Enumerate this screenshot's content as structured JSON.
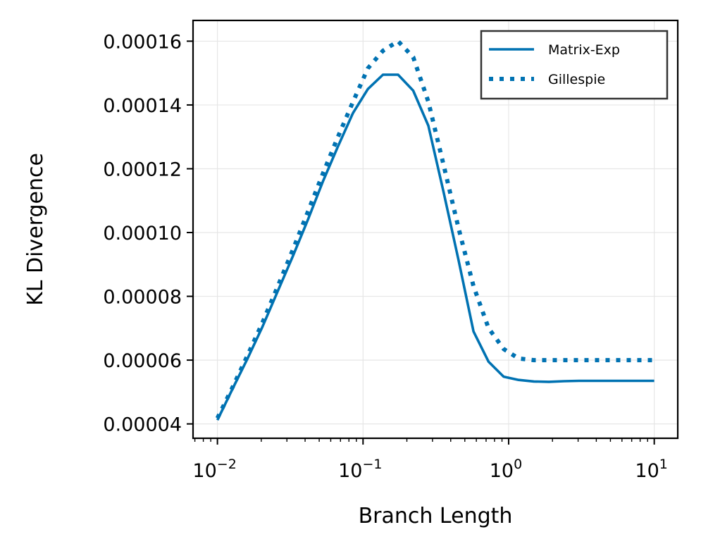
{
  "chart_data": {
    "type": "line",
    "title": "",
    "xlabel": "Branch Length",
    "ylabel": "KL Divergence",
    "xscale": "log",
    "xlim": [
      0.0068,
      14.5
    ],
    "ylim": [
      3.55e-05,
      0.0001665
    ],
    "grid": true,
    "legend_position": "top-right",
    "color": "#0072b2",
    "x_ticks": [
      {
        "value": 0.01,
        "base": "10",
        "exp": "−2"
      },
      {
        "value": 0.1,
        "base": "10",
        "exp": "−1"
      },
      {
        "value": 1,
        "base": "10",
        "exp": "0"
      },
      {
        "value": 10,
        "base": "10",
        "exp": "1"
      }
    ],
    "y_ticks": [
      {
        "value": 4e-05,
        "label": "0.00004"
      },
      {
        "value": 6e-05,
        "label": "0.00006"
      },
      {
        "value": 8e-05,
        "label": "0.00008"
      },
      {
        "value": 0.0001,
        "label": "0.00010"
      },
      {
        "value": 0.00012,
        "label": "0.00012"
      },
      {
        "value": 0.00014,
        "label": "0.00014"
      },
      {
        "value": 0.00016,
        "label": "0.00016"
      }
    ],
    "series": [
      {
        "name": "Matrix-Exp",
        "style": "solid",
        "x": [
          0.01,
          0.0127,
          0.0161,
          0.0204,
          0.0259,
          0.0329,
          0.0418,
          0.053,
          0.0673,
          0.0854,
          0.108,
          0.137,
          0.174,
          0.221,
          0.281,
          0.356,
          0.452,
          0.574,
          0.728,
          0.924,
          1.17,
          1.49,
          1.89,
          2.4,
          3.04,
          3.86,
          4.9,
          6.22,
          7.9,
          10.0
        ],
        "y": [
          4.12e-05,
          5.1e-05,
          6.05e-05,
          7.05e-05,
          8.15e-05,
          9.25e-05,
          0.000104,
          0.000116,
          0.000127,
          0.0001375,
          0.000145,
          0.0001495,
          0.0001495,
          0.0001445,
          0.0001335,
          0.000113,
          9.15e-05,
          6.9e-05,
          5.95e-05,
          5.48e-05,
          5.38e-05,
          5.33e-05,
          5.32e-05,
          5.34e-05,
          5.35e-05,
          5.35e-05,
          5.35e-05,
          5.35e-05,
          5.35e-05,
          5.35e-05
        ]
      },
      {
        "name": "Gillespie",
        "style": "dotted",
        "x": [
          0.01,
          0.0127,
          0.0161,
          0.0204,
          0.0259,
          0.0329,
          0.0418,
          0.053,
          0.0673,
          0.0854,
          0.108,
          0.137,
          0.174,
          0.221,
          0.281,
          0.356,
          0.452,
          0.574,
          0.728,
          0.924,
          1.17,
          1.49,
          1.89,
          2.4,
          3.04,
          3.86,
          4.9,
          6.22,
          7.9,
          10.0
        ],
        "y": [
          4.18e-05,
          5.15e-05,
          6.15e-05,
          7.18e-05,
          8.3e-05,
          9.45e-05,
          0.0001065,
          0.0001185,
          0.00013,
          0.000141,
          0.0001515,
          0.000157,
          0.00016,
          0.000155,
          0.000141,
          0.0001215,
          0.0001015,
          8.32e-05,
          7e-05,
          6.35e-05,
          6.05e-05,
          6e-05,
          6e-05,
          6e-05,
          6e-05,
          6e-05,
          6e-05,
          6e-05,
          6e-05,
          6e-05
        ]
      }
    ]
  }
}
